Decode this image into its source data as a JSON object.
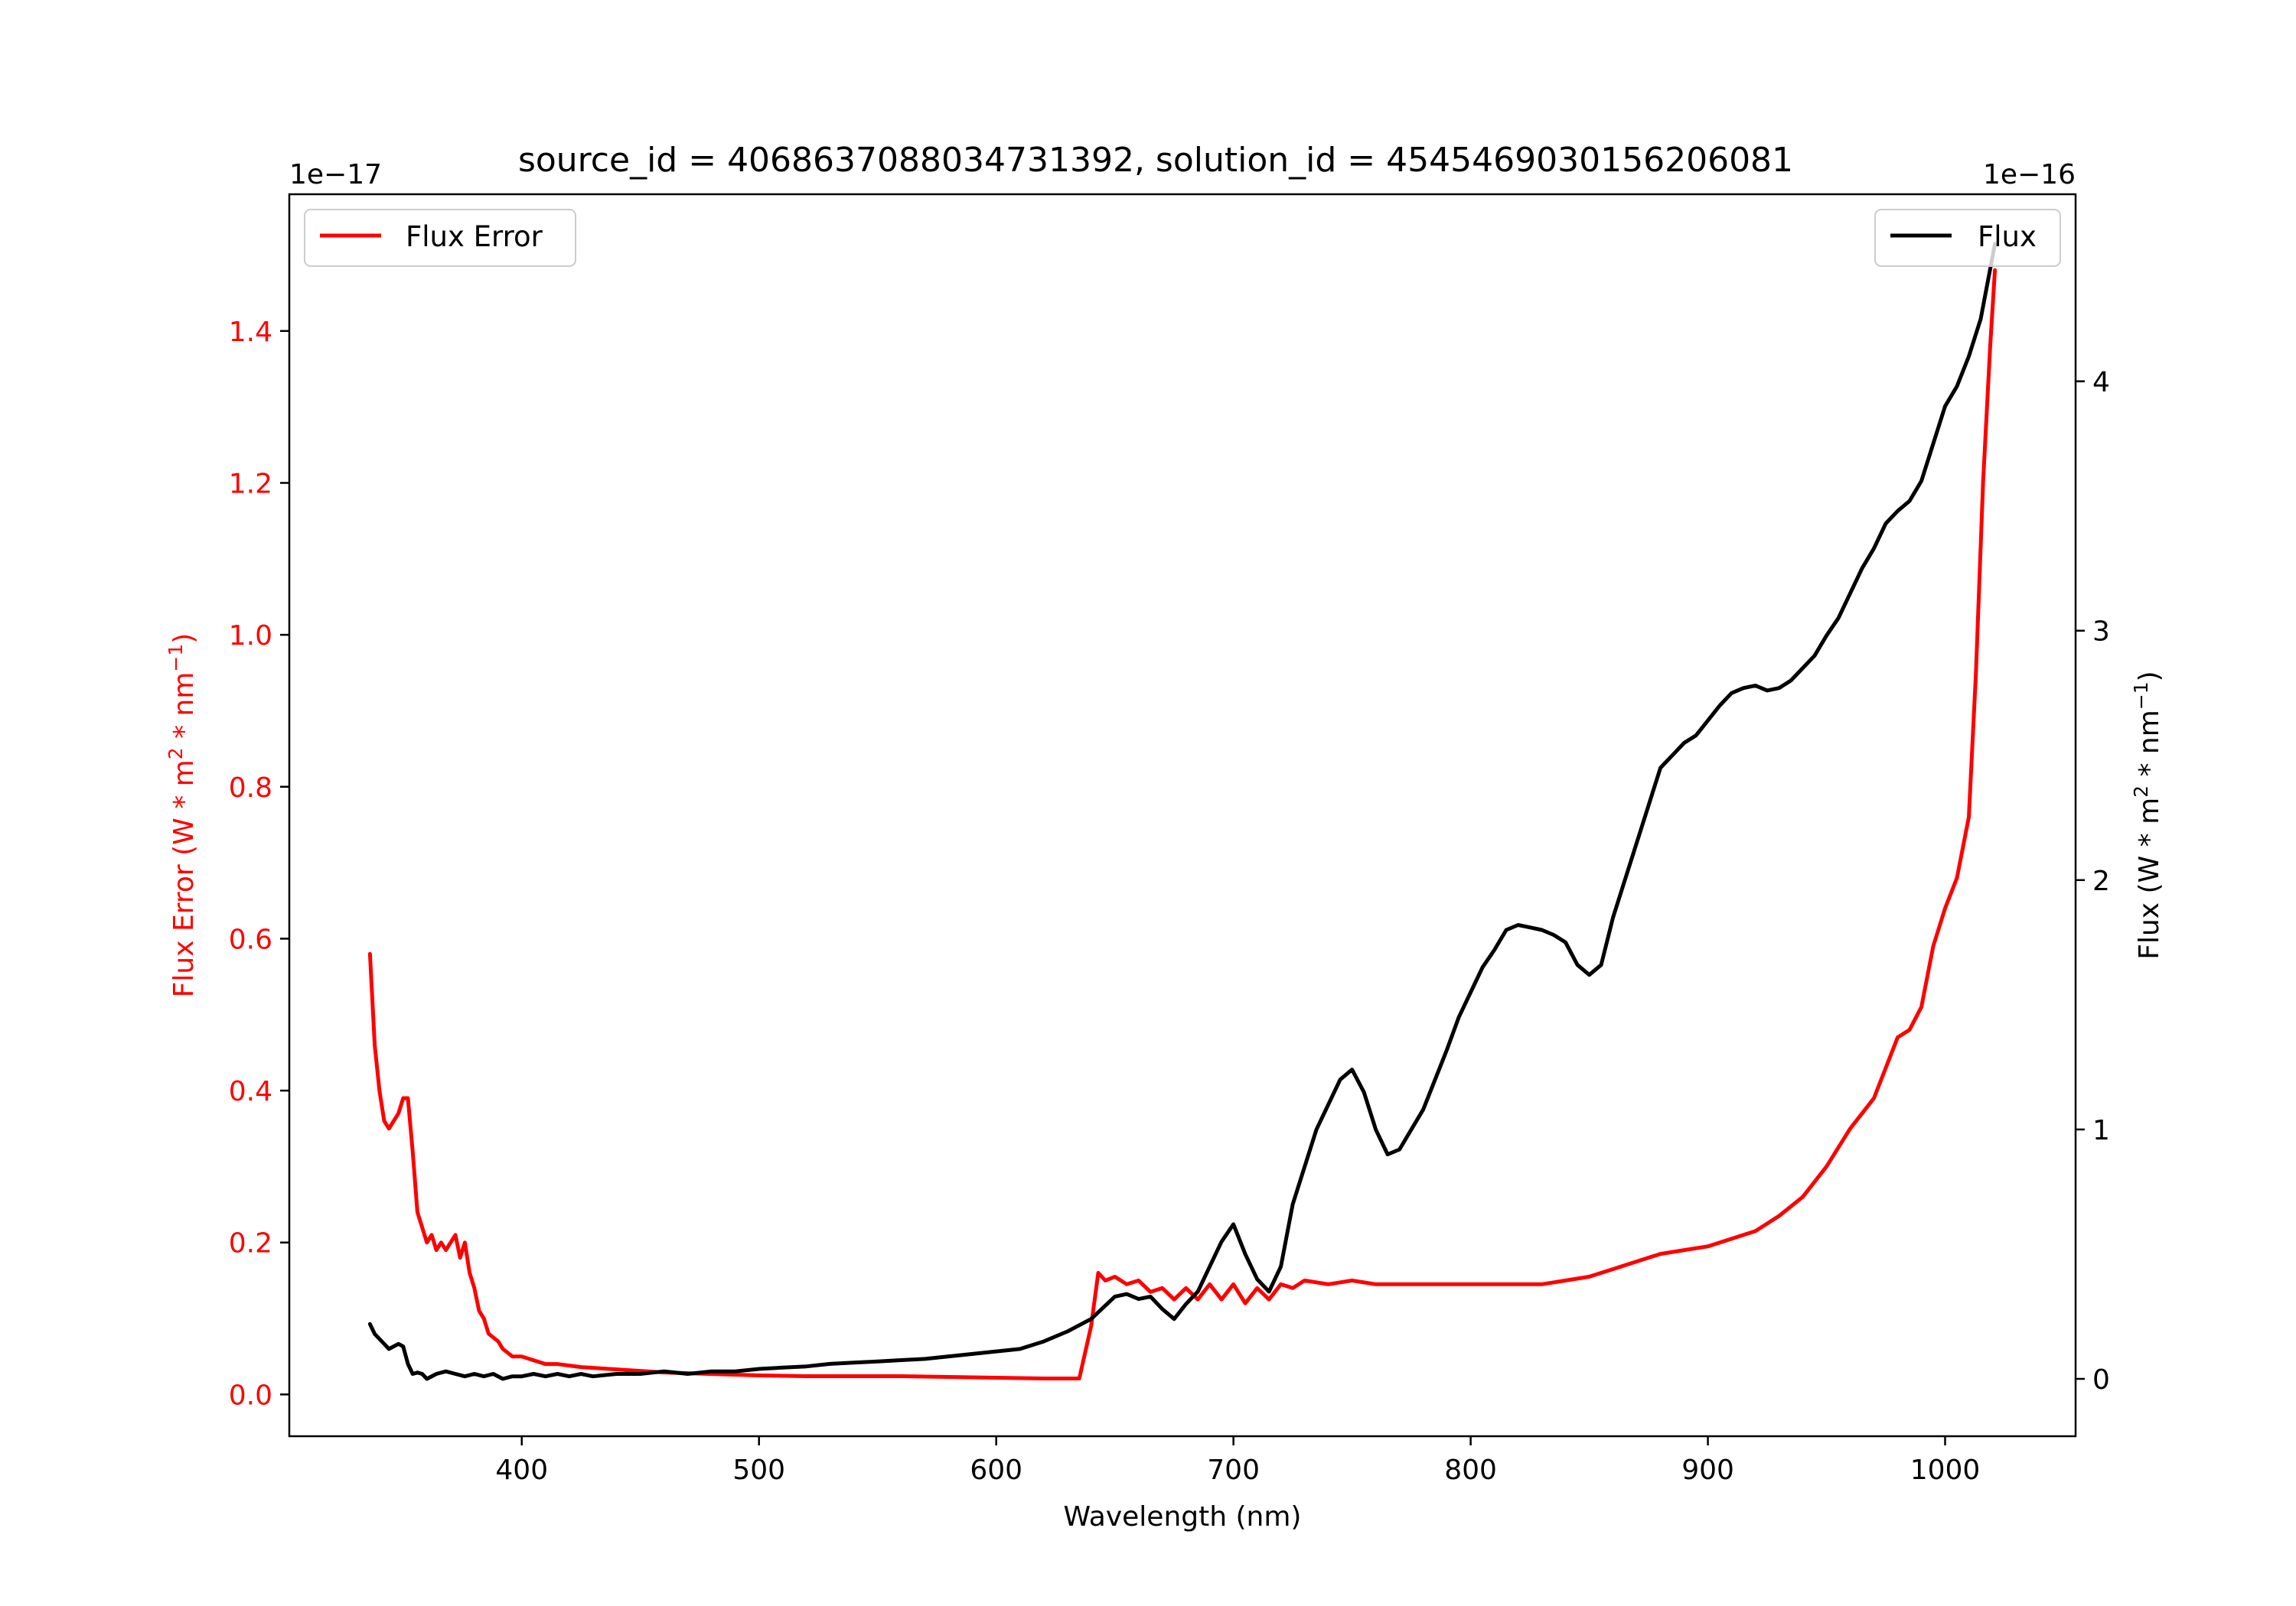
{
  "chart_data": {
    "type": "line",
    "title": "source_id = 4068637088034731392, solution_id = 4545469030156206081",
    "xlabel": "Wavelength (nm)",
    "xlim": [
      302,
      1055
    ],
    "xticks": [
      400,
      500,
      600,
      700,
      800,
      900,
      1000
    ],
    "xtick_labels": [
      "400",
      "500",
      "600",
      "700",
      "800",
      "900",
      "1000"
    ],
    "left_axis": {
      "label_prefix": "Flux Error (W * m",
      "label_mid": " * nm",
      "label_end": ")",
      "sup1": "2",
      "sup2": "−1",
      "color": "#ff0000",
      "offset_text": "1e−17",
      "ylim": [
        -0.055,
        1.58
      ],
      "ticks": [
        0.0,
        0.2,
        0.4,
        0.6,
        0.8,
        1.0,
        1.2,
        1.4
      ],
      "tick_labels": [
        "0.0",
        "0.2",
        "0.4",
        "0.6",
        "0.8",
        "1.0",
        "1.2",
        "1.4"
      ]
    },
    "right_axis": {
      "label_prefix": "Flux (W * m",
      "label_mid": " * nm",
      "label_end": ")",
      "sup1": "2",
      "sup2": "−1",
      "color": "#000000",
      "offset_text": "1e−16",
      "ylim": [
        -0.23,
        4.75
      ],
      "ticks": [
        0,
        1,
        2,
        3,
        4
      ],
      "tick_labels": [
        "0",
        "1",
        "2",
        "3",
        "4"
      ]
    },
    "legend_left": {
      "label": "Flux Error",
      "color": "#ff0000",
      "placement": "top-left"
    },
    "legend_right": {
      "label": "Flux",
      "color": "#000000",
      "placement": "top-right"
    },
    "series": [
      {
        "name": "Flux Error",
        "axis": "left",
        "color": "#ff0000",
        "x": [
          336,
          338,
          340,
          342,
          344,
          346,
          348,
          350,
          352,
          354,
          356,
          358,
          360,
          362,
          364,
          366,
          368,
          370,
          372,
          374,
          376,
          378,
          380,
          382,
          384,
          386,
          388,
          390,
          392,
          394,
          396,
          398,
          400,
          405,
          410,
          415,
          420,
          425,
          430,
          440,
          450,
          460,
          470,
          480,
          490,
          500,
          520,
          540,
          560,
          580,
          600,
          620,
          630,
          635,
          640,
          643,
          646,
          650,
          655,
          660,
          665,
          670,
          675,
          680,
          685,
          690,
          695,
          700,
          705,
          710,
          715,
          720,
          725,
          730,
          740,
          750,
          760,
          770,
          780,
          790,
          800,
          810,
          820,
          830,
          840,
          850,
          860,
          870,
          880,
          890,
          900,
          910,
          920,
          930,
          940,
          950,
          960,
          965,
          970,
          975,
          980,
          985,
          990,
          995,
          1000,
          1005,
          1010,
          1013,
          1016,
          1019,
          1021
        ],
        "y": [
          0.58,
          0.46,
          0.4,
          0.36,
          0.35,
          0.36,
          0.37,
          0.39,
          0.39,
          0.32,
          0.24,
          0.22,
          0.2,
          0.21,
          0.19,
          0.2,
          0.19,
          0.2,
          0.21,
          0.18,
          0.2,
          0.16,
          0.14,
          0.11,
          0.1,
          0.08,
          0.075,
          0.07,
          0.06,
          0.055,
          0.05,
          0.05,
          0.05,
          0.045,
          0.04,
          0.04,
          0.038,
          0.036,
          0.035,
          0.033,
          0.031,
          0.029,
          0.028,
          0.027,
          0.026,
          0.025,
          0.024,
          0.024,
          0.024,
          0.023,
          0.022,
          0.021,
          0.021,
          0.021,
          0.09,
          0.16,
          0.15,
          0.155,
          0.145,
          0.15,
          0.135,
          0.14,
          0.125,
          0.14,
          0.125,
          0.145,
          0.125,
          0.145,
          0.12,
          0.14,
          0.125,
          0.145,
          0.14,
          0.15,
          0.145,
          0.15,
          0.145,
          0.145,
          0.145,
          0.145,
          0.145,
          0.145,
          0.145,
          0.145,
          0.15,
          0.155,
          0.165,
          0.175,
          0.185,
          0.19,
          0.195,
          0.205,
          0.215,
          0.235,
          0.26,
          0.3,
          0.35,
          0.37,
          0.39,
          0.43,
          0.47,
          0.48,
          0.51,
          0.59,
          0.64,
          0.68,
          0.76,
          0.95,
          1.2,
          1.38,
          1.48
        ]
      },
      {
        "name": "Flux",
        "axis": "right",
        "color": "#000000",
        "x": [
          336,
          338,
          340,
          342,
          344,
          346,
          348,
          350,
          352,
          354,
          356,
          358,
          360,
          364,
          368,
          372,
          376,
          380,
          384,
          388,
          392,
          396,
          400,
          405,
          410,
          415,
          420,
          425,
          430,
          440,
          450,
          460,
          470,
          480,
          490,
          500,
          510,
          520,
          530,
          540,
          550,
          560,
          570,
          580,
          590,
          600,
          610,
          620,
          630,
          640,
          650,
          655,
          660,
          665,
          670,
          675,
          680,
          685,
          690,
          695,
          700,
          705,
          710,
          715,
          720,
          725,
          730,
          735,
          740,
          745,
          750,
          755,
          760,
          765,
          770,
          775,
          780,
          785,
          790,
          795,
          800,
          805,
          810,
          815,
          820,
          825,
          830,
          835,
          840,
          845,
          850,
          855,
          860,
          865,
          870,
          875,
          880,
          885,
          890,
          895,
          900,
          905,
          910,
          915,
          920,
          925,
          930,
          935,
          940,
          945,
          950,
          955,
          960,
          965,
          970,
          975,
          980,
          985,
          990,
          995,
          1000,
          1005,
          1010,
          1015,
          1019,
          1021
        ],
        "y": [
          0.22,
          0.18,
          0.16,
          0.14,
          0.12,
          0.13,
          0.14,
          0.13,
          0.06,
          0.02,
          0.025,
          0.02,
          0.0,
          0.02,
          0.03,
          0.02,
          0.01,
          0.02,
          0.01,
          0.02,
          0.0,
          0.01,
          0.01,
          0.02,
          0.01,
          0.02,
          0.01,
          0.02,
          0.01,
          0.02,
          0.02,
          0.03,
          0.02,
          0.03,
          0.03,
          0.04,
          0.045,
          0.05,
          0.06,
          0.065,
          0.07,
          0.075,
          0.08,
          0.09,
          0.1,
          0.11,
          0.12,
          0.15,
          0.19,
          0.24,
          0.33,
          0.34,
          0.32,
          0.33,
          0.28,
          0.24,
          0.3,
          0.35,
          0.45,
          0.55,
          0.62,
          0.5,
          0.4,
          0.35,
          0.45,
          0.7,
          0.85,
          1.0,
          1.1,
          1.2,
          1.24,
          1.15,
          1.0,
          0.9,
          0.92,
          1.0,
          1.08,
          1.2,
          1.32,
          1.45,
          1.55,
          1.65,
          1.72,
          1.8,
          1.82,
          1.81,
          1.8,
          1.78,
          1.75,
          1.66,
          1.62,
          1.66,
          1.85,
          2.0,
          2.15,
          2.3,
          2.45,
          2.5,
          2.55,
          2.58,
          2.64,
          2.7,
          2.75,
          2.77,
          2.78,
          2.76,
          2.77,
          2.8,
          2.85,
          2.9,
          2.98,
          3.05,
          3.15,
          3.25,
          3.33,
          3.43,
          3.48,
          3.52,
          3.6,
          3.75,
          3.9,
          3.98,
          4.1,
          4.25,
          4.45,
          4.55
        ]
      }
    ]
  }
}
